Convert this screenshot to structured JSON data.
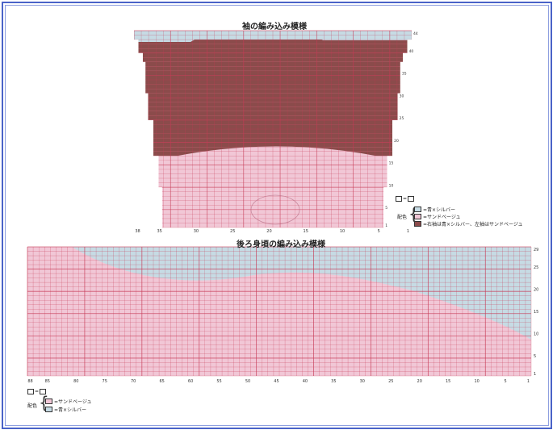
{
  "sleeve": {
    "title": "袖の編み込み模様",
    "x_ticks": [
      "38",
      "35",
      "30",
      "25",
      "20",
      "15",
      "10",
      "5",
      "1"
    ],
    "y_ticks": [
      "44",
      "40",
      "35",
      "30",
      "25",
      "20",
      "15",
      "10",
      "5",
      "1"
    ],
    "legend": {
      "symbol_label": "=",
      "haiyoku_label": "配色",
      "items": [
        {
          "text": "=青×シルバー",
          "color": "#c6dbe4"
        },
        {
          "text": "=サンドベージュ",
          "color": "#f1c7d6"
        },
        {
          "text": "=右袖は青×シルバー、左袖はサンドベージュ",
          "color": "#8b4b4b"
        }
      ]
    }
  },
  "back": {
    "title": "後ろ身頃の編み込み模様",
    "x_ticks": [
      "88",
      "85",
      "80",
      "75",
      "70",
      "65",
      "60",
      "55",
      "50",
      "45",
      "40",
      "35",
      "30",
      "25",
      "20",
      "15",
      "10",
      "5",
      "1"
    ],
    "y_ticks": [
      "29",
      "25",
      "20",
      "15",
      "10",
      "5",
      "1"
    ],
    "legend": {
      "symbol_label": "=",
      "haiyoku_label": "配色",
      "items": [
        {
          "text": "=サンドベージュ",
          "color": "#f1c7d6"
        },
        {
          "text": "=青×シルバー",
          "color": "#c6dbe4"
        }
      ]
    }
  },
  "colors": {
    "blue": "#c6dbe4",
    "pink": "#f1c7d6",
    "brown": "#8b4b4b",
    "grid": "#c73a56",
    "frame": "#4a63c8"
  }
}
